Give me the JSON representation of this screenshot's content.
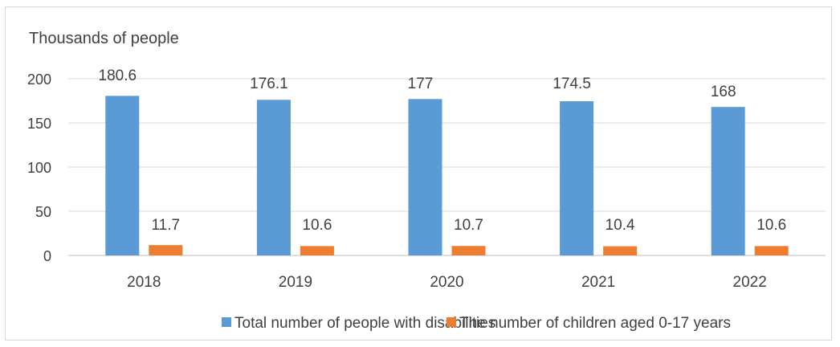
{
  "chart_data": {
    "type": "bar",
    "title": "",
    "ylabel": "Thousands of people",
    "xlabel": "",
    "categories": [
      "2018",
      "2019",
      "2020",
      "2021",
      "2022"
    ],
    "series": [
      {
        "name": "Total number of people with disabilities",
        "values": [
          180.6,
          176.1,
          177,
          174.5,
          168
        ],
        "labels": [
          "180.6",
          "176.1",
          "177",
          "174.5",
          "168"
        ],
        "color": "#5b9bd5"
      },
      {
        "name": "The number of children aged 0-17 years",
        "values": [
          11.7,
          10.6,
          10.7,
          10.4,
          10.6
        ],
        "labels": [
          "11.7",
          "10.6",
          "10.7",
          "10.4",
          "10.6"
        ],
        "color": "#ed7d31"
      }
    ],
    "ylim": [
      0,
      200
    ],
    "yticks": [
      "0",
      "50",
      "100",
      "150",
      "200"
    ],
    "grid": true,
    "legend": "bottom",
    "colors": {
      "grid": "#d9d9d9",
      "text": "#404040"
    }
  }
}
